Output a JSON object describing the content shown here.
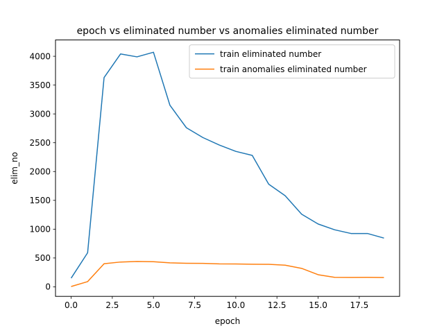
{
  "chart_data": {
    "type": "line",
    "title": "epoch vs eliminated number vs anomalies eliminated number",
    "xlabel": "epoch",
    "ylabel": "elim_no",
    "x": [
      0,
      1,
      2,
      3,
      4,
      5,
      6,
      7,
      8,
      9,
      10,
      11,
      12,
      13,
      14,
      15,
      16,
      17,
      18,
      19
    ],
    "xlim": [
      -0.95,
      19.95
    ],
    "ylim": [
      -166,
      4283
    ],
    "xticks": [
      0.0,
      2.5,
      5.0,
      7.5,
      10.0,
      12.5,
      15.0,
      17.5
    ],
    "xtick_labels": [
      "0.0",
      "2.5",
      "5.0",
      "7.5",
      "10.0",
      "12.5",
      "15.0",
      "17.5"
    ],
    "yticks": [
      0,
      500,
      1000,
      1500,
      2000,
      2500,
      3000,
      3500,
      4000
    ],
    "ytick_labels": [
      "0",
      "500",
      "1000",
      "1500",
      "2000",
      "2500",
      "3000",
      "3500",
      "4000"
    ],
    "grid": false,
    "legend_position": "top-right",
    "series": [
      {
        "name": "train eliminated number",
        "color": "#1f77b4",
        "values": [
          150,
          590,
          3630,
          4040,
          3990,
          4070,
          3150,
          2760,
          2590,
          2460,
          2350,
          2280,
          1780,
          1580,
          1260,
          1090,
          990,
          925,
          925,
          845
        ]
      },
      {
        "name": "train anomalies eliminated number",
        "color": "#ff7f0e",
        "values": [
          5,
          90,
          400,
          430,
          440,
          435,
          415,
          408,
          407,
          398,
          396,
          392,
          390,
          375,
          320,
          210,
          165,
          163,
          165,
          162
        ]
      }
    ]
  }
}
